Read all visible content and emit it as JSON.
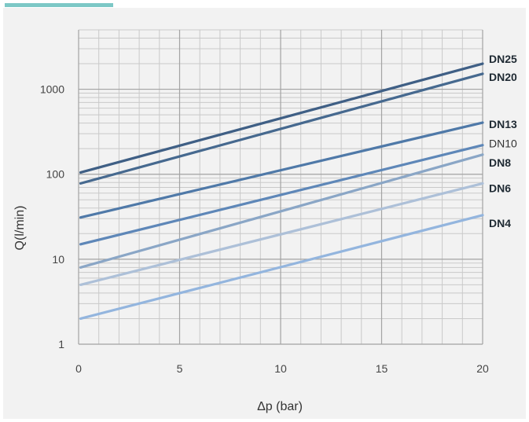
{
  "chart_data": {
    "type": "line",
    "xlabel": "Δp (bar)",
    "ylabel": "Q(l/min)",
    "xlim": [
      0,
      20
    ],
    "ylim": [
      1,
      5000
    ],
    "y_scale": "log",
    "x_ticks": [
      "0",
      "5",
      "10",
      "15",
      "20"
    ],
    "y_ticks": [
      "1",
      "10",
      "100",
      "1000"
    ],
    "grid": true,
    "legend": "end-of-line labels",
    "series": [
      {
        "name": "DN25",
        "x": [
          0.1,
          20
        ],
        "y": [
          105,
          2000
        ],
        "color": "#3f5f85"
      },
      {
        "name": "DN20",
        "x": [
          0.1,
          20
        ],
        "y": [
          78,
          1520
        ],
        "color": "#46698f"
      },
      {
        "name": "DN13",
        "x": [
          0.1,
          20
        ],
        "y": [
          31,
          405
        ],
        "color": "#4f79a8"
      },
      {
        "name": "DN10",
        "x": [
          0.1,
          20
        ],
        "y": [
          15,
          220
        ],
        "color": "#5e87b8"
      },
      {
        "name": "DN8",
        "x": [
          0.1,
          20
        ],
        "y": [
          8,
          170
        ],
        "color": "#8aa6c6"
      },
      {
        "name": "DN6",
        "x": [
          0.1,
          20
        ],
        "y": [
          5,
          78
        ],
        "color": "#adc0d8"
      },
      {
        "name": "DN4",
        "x": [
          0.1,
          20
        ],
        "y": [
          2,
          33
        ],
        "color": "#93b5de"
      }
    ]
  }
}
